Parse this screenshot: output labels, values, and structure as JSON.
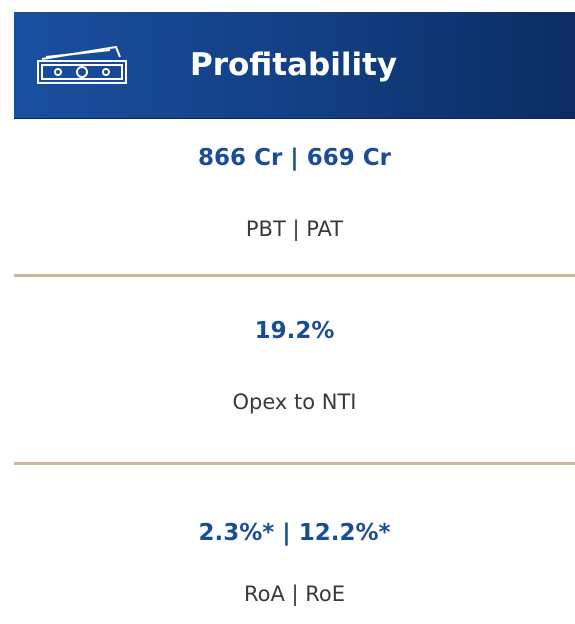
{
  "header": {
    "title": "Profitability"
  },
  "metrics": [
    {
      "value": "866 Cr | 669 Cr",
      "label": "PBT | PAT"
    },
    {
      "value": "19.2%",
      "label": "Opex to NTI"
    },
    {
      "value": "2.3%* | 12.2%*",
      "label": "RoA | RoE"
    }
  ]
}
